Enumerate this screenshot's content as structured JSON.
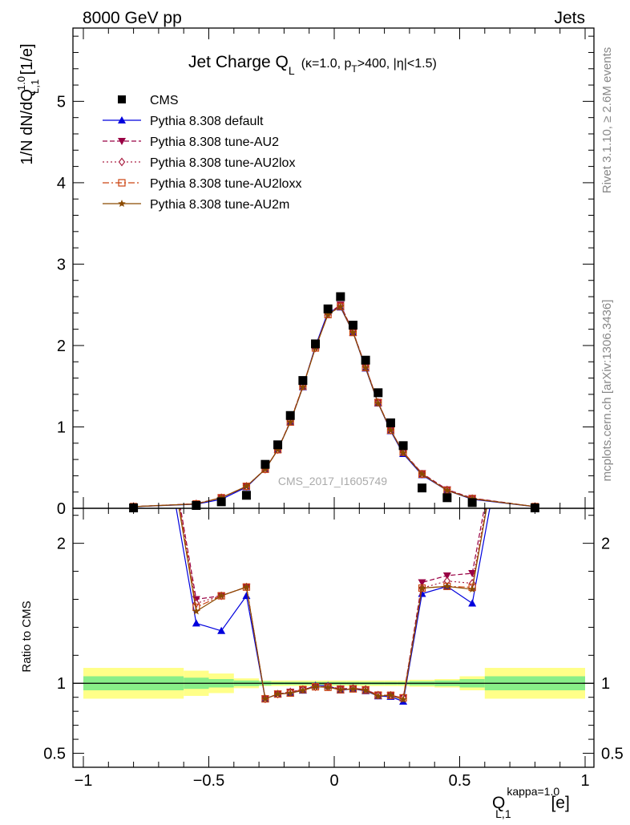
{
  "header": {
    "left": "8000 GeV pp",
    "right": "Jets"
  },
  "side_labels": {
    "rivet": "Rivet 3.1.10, ≥ 2.6M events",
    "mcplots": "mcplots.cern.ch [arXiv:1306.3436]"
  },
  "chart_data": {
    "type": "scatter",
    "title": {
      "main": "Jet Charge Q",
      "main_sub": "L",
      "cond_pre": "(κ=1.0, p",
      "cond_sub": "T",
      "cond_post": ">400, |η|<1.5)"
    },
    "watermark": "CMS_2017_I1605749",
    "ylabel": {
      "pre": "1/N dN/dQ",
      "sup": "1.0",
      "sub": "L,1",
      "post": " [1/e]"
    },
    "xlabel": {
      "pre": "Q",
      "sup": "kappa=1.0",
      "sub": "L,1",
      "post": " [e]"
    },
    "ratio_ylabel": "Ratio to CMS",
    "xlim": [
      -1.0,
      1.0
    ],
    "ylim": [
      0,
      5.9
    ],
    "ratio_ylim": [
      0.4,
      2.25
    ],
    "x_ticks": [
      {
        "v": -1.0,
        "label": "−1"
      },
      {
        "v": -0.5,
        "label": "−0.5"
      },
      {
        "v": 0.0,
        "label": "0"
      },
      {
        "v": 0.5,
        "label": "0.5"
      },
      {
        "v": 1.0,
        "label": "1"
      }
    ],
    "y_ticks": [
      {
        "v": 0,
        "label": "0"
      },
      {
        "v": 1,
        "label": "1"
      },
      {
        "v": 2,
        "label": "2"
      },
      {
        "v": 3,
        "label": "3"
      },
      {
        "v": 4,
        "label": "4"
      },
      {
        "v": 5,
        "label": "5"
      }
    ],
    "ratio_ticks": [
      {
        "v": 0.5,
        "label": "0.5"
      },
      {
        "v": 1,
        "label": "1"
      },
      {
        "v": 2,
        "label": "2"
      }
    ],
    "legend_position": "top-left",
    "bins": [
      -1.0,
      -0.6,
      -0.5,
      -0.4,
      -0.3,
      -0.25,
      -0.2,
      -0.15,
      -0.1,
      -0.05,
      0.0,
      0.05,
      0.1,
      0.15,
      0.2,
      0.25,
      0.3,
      0.4,
      0.5,
      0.6,
      1.0
    ],
    "x": [
      -0.8,
      -0.55,
      -0.45,
      -0.35,
      -0.275,
      -0.225,
      -0.175,
      -0.125,
      -0.075,
      -0.025,
      0.025,
      0.075,
      0.125,
      0.175,
      0.225,
      0.275,
      0.35,
      0.45,
      0.55,
      0.8
    ],
    "cms": {
      "name": "CMS",
      "values": [
        0.005,
        0.035,
        0.08,
        0.16,
        0.54,
        0.78,
        1.14,
        1.57,
        2.02,
        2.45,
        2.6,
        2.25,
        1.82,
        1.42,
        1.05,
        0.77,
        0.25,
        0.13,
        0.07,
        0.005
      ],
      "band_inner": [
        0.05,
        0.04,
        0.03,
        0.02,
        0.015,
        0.01,
        0.01,
        0.01,
        0.01,
        0.01,
        0.01,
        0.01,
        0.01,
        0.01,
        0.01,
        0.01,
        0.015,
        0.02,
        0.03,
        0.05
      ],
      "band_outer": [
        0.11,
        0.09,
        0.07,
        0.035,
        0.02,
        0.02,
        0.02,
        0.02,
        0.02,
        0.02,
        0.02,
        0.02,
        0.02,
        0.02,
        0.02,
        0.02,
        0.025,
        0.03,
        0.05,
        0.11
      ]
    },
    "series": [
      {
        "name": "Pythia 8.308 default",
        "color": "#0000dd",
        "marker": "triangle-up",
        "dash": "",
        "values": [
          0.02,
          0.05,
          0.11,
          0.26,
          0.48,
          0.72,
          1.06,
          1.49,
          1.99,
          2.41,
          2.47,
          2.16,
          1.72,
          1.29,
          0.95,
          0.67,
          0.41,
          0.22,
          0.11,
          0.02
        ]
      },
      {
        "name": "Pythia 8.308 tune-AU2",
        "color": "#990044",
        "marker": "triangle-down",
        "dash": "6,3",
        "values": [
          0.021,
          0.056,
          0.13,
          0.27,
          0.48,
          0.72,
          1.07,
          1.5,
          1.97,
          2.39,
          2.5,
          2.17,
          1.74,
          1.3,
          0.96,
          0.69,
          0.43,
          0.23,
          0.125,
          0.021
        ]
      },
      {
        "name": "Pythia 8.308 tune-AU2lox",
        "color": "#aa2244",
        "marker": "diamond-open",
        "dash": "2,3",
        "values": [
          0.021,
          0.055,
          0.13,
          0.27,
          0.48,
          0.72,
          1.07,
          1.5,
          1.97,
          2.39,
          2.49,
          2.17,
          1.74,
          1.3,
          0.96,
          0.69,
          0.42,
          0.225,
          0.12,
          0.021
        ]
      },
      {
        "name": "Pythia 8.308 tune-AU2loxx",
        "color": "#cc4411",
        "marker": "square-open",
        "dash": "8,3,2,3",
        "values": [
          0.021,
          0.054,
          0.13,
          0.27,
          0.48,
          0.72,
          1.06,
          1.5,
          1.97,
          2.38,
          2.48,
          2.16,
          1.73,
          1.3,
          0.96,
          0.69,
          0.42,
          0.22,
          0.118,
          0.021
        ]
      },
      {
        "name": "Pythia 8.308 tune-AU2m",
        "color": "#8b4a00",
        "marker": "star",
        "dash": "",
        "values": [
          0.021,
          0.053,
          0.13,
          0.27,
          0.48,
          0.72,
          1.06,
          1.49,
          1.97,
          2.38,
          2.48,
          2.16,
          1.73,
          1.29,
          0.96,
          0.68,
          0.42,
          0.22,
          0.117,
          0.021
        ]
      }
    ]
  }
}
